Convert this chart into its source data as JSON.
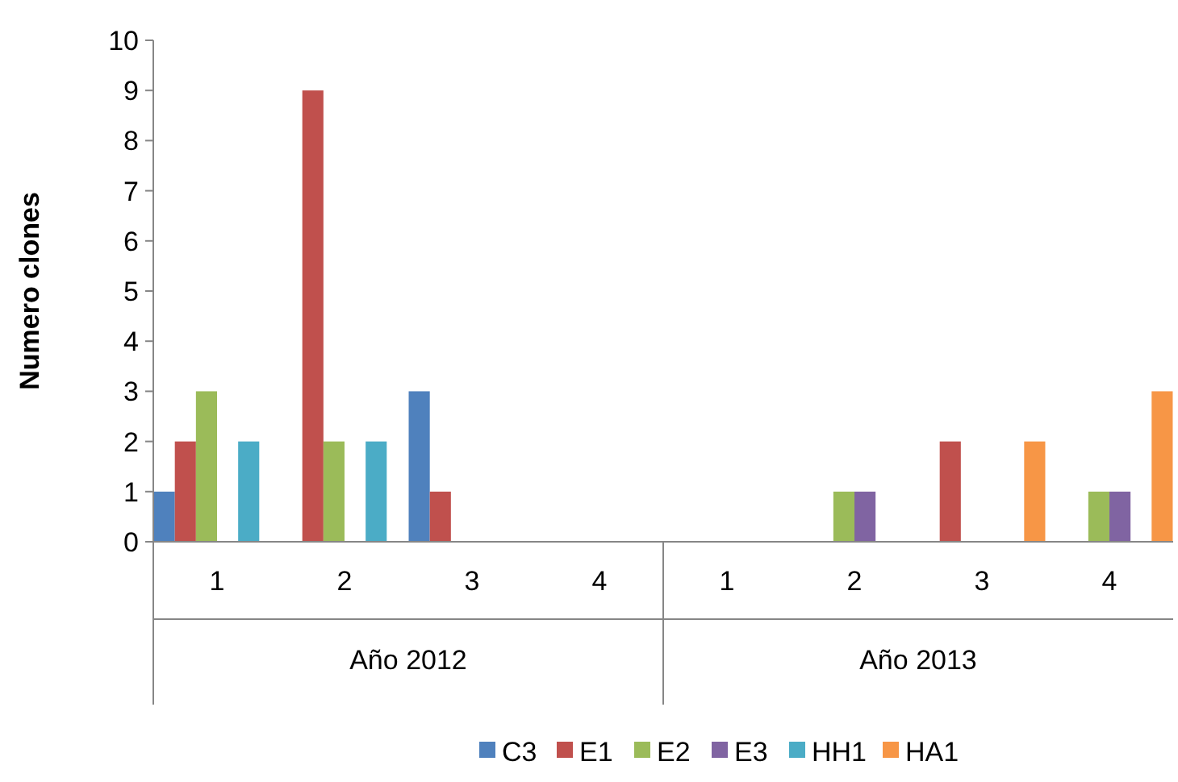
{
  "chart_data": {
    "type": "bar",
    "ylabel": "Numero clones",
    "categories": [
      "1",
      "2",
      "3",
      "4",
      "1",
      "2",
      "3",
      "4"
    ],
    "annotations": [
      "Año 2012",
      "Año 2013"
    ],
    "series": [
      {
        "name": "C3",
        "color": "#4f81bd",
        "values": [
          1,
          0,
          3,
          0,
          0,
          0,
          0,
          0
        ]
      },
      {
        "name": "E1",
        "color": "#c0504d",
        "values": [
          2,
          9,
          1,
          0,
          0,
          0,
          2,
          0
        ]
      },
      {
        "name": "E2",
        "color": "#9bbb59",
        "values": [
          3,
          2,
          0,
          0,
          0,
          1,
          0,
          1
        ]
      },
      {
        "name": "E3",
        "color": "#8064a2",
        "values": [
          0,
          0,
          0,
          0,
          0,
          1,
          0,
          1
        ]
      },
      {
        "name": "HH1",
        "color": "#4bacc6",
        "values": [
          2,
          2,
          0,
          0,
          0,
          0,
          0,
          0
        ]
      },
      {
        "name": "HA1",
        "color": "#f79646",
        "values": [
          0,
          0,
          0,
          0,
          0,
          0,
          2,
          3
        ]
      }
    ],
    "ylim": [
      0,
      10
    ],
    "yticks": [
      0,
      1,
      2,
      3,
      4,
      5,
      6,
      7,
      8,
      9,
      10
    ],
    "grid": false,
    "legend": "bottom"
  }
}
